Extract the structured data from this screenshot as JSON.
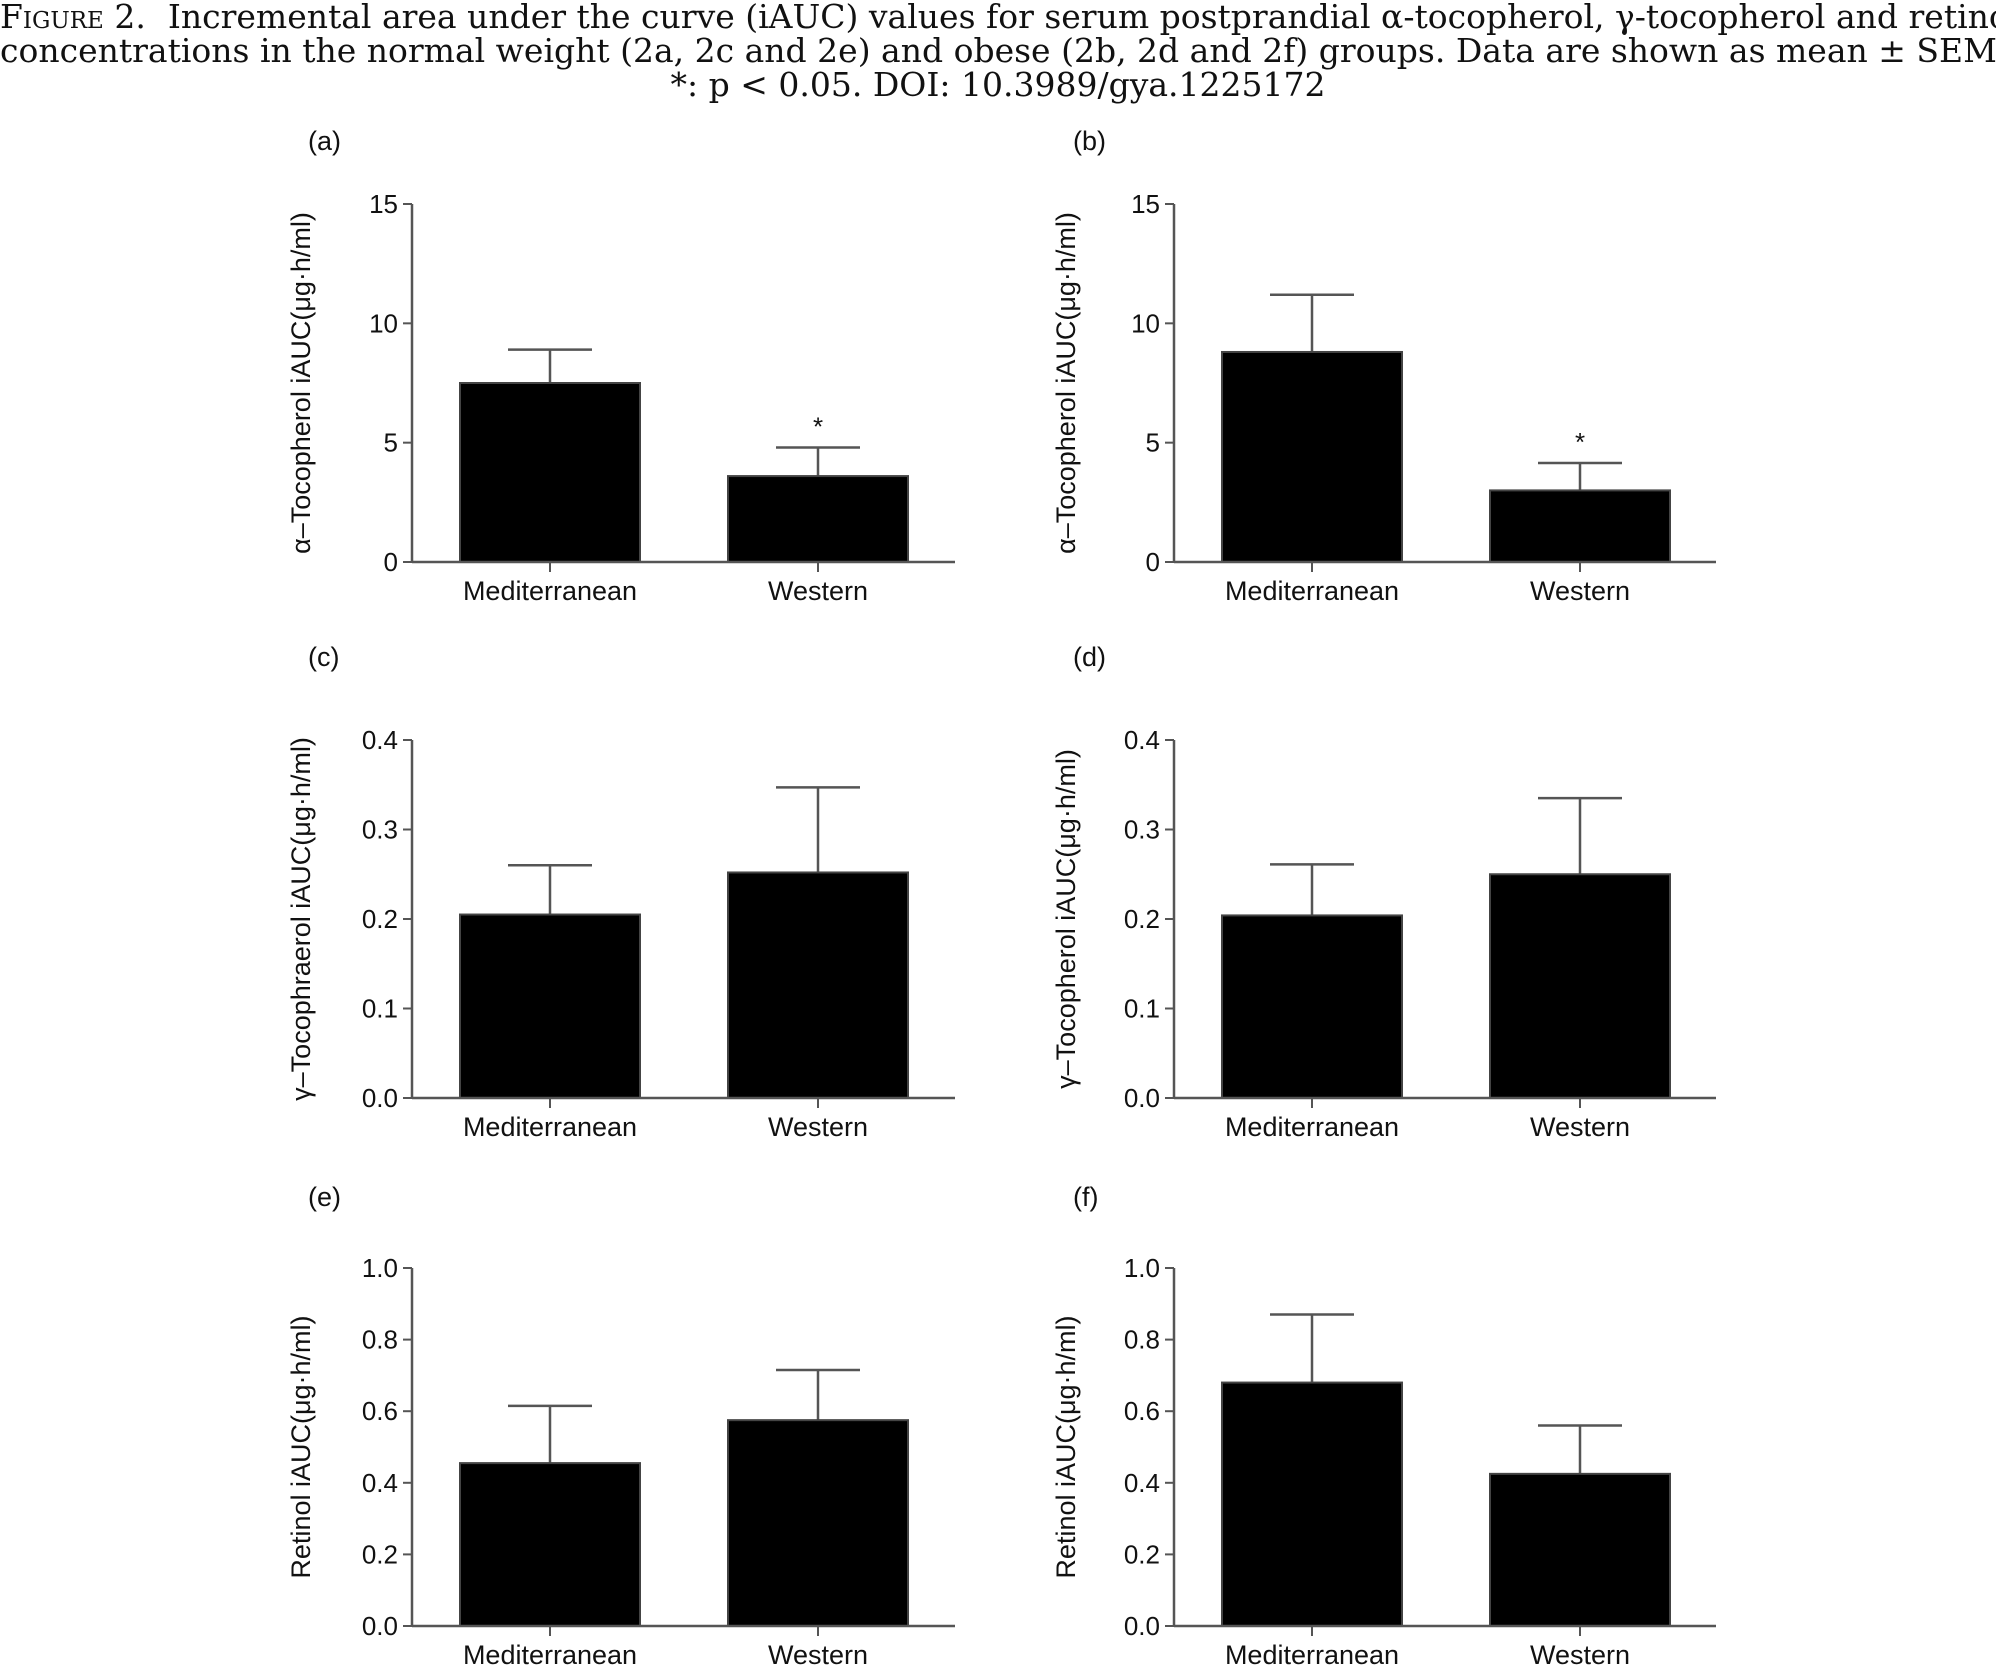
{
  "caption": {
    "figure_label": "Figure 2.",
    "line1": "Incremental area under the curve (iAUC) values for serum postprandial α-tocopherol, γ-tocopherol and retinol",
    "line2": "concentrations in the normal weight (2a, 2c and 2e) and obese (2b, 2d and 2f) groups. Data are shown as mean ± SEM.",
    "line3": "*: p < 0.05. DOI: 10.3989/gya.1225172"
  },
  "colors": {
    "bar": "#000000",
    "axis": "#555555",
    "error_bar": "#555555"
  },
  "chart_data": [
    {
      "type": "bar",
      "panel": "(a)",
      "title": "",
      "xlabel": "",
      "ylabel": "α–Tocopherol iAUC(μg·h/ml)",
      "categories": [
        "Mediterranean",
        "Western"
      ],
      "values": [
        7.5,
        3.6
      ],
      "errors": [
        1.4,
        1.2
      ],
      "significance": [
        "",
        "*"
      ],
      "ylim": [
        0,
        15
      ],
      "yticks": [
        "0",
        "5",
        "10",
        "15"
      ],
      "ytick_values": [
        0,
        5,
        10,
        15
      ]
    },
    {
      "type": "bar",
      "panel": "(b)",
      "title": "",
      "xlabel": "",
      "ylabel": "α–Tocopherol iAUC(μg·h/ml)",
      "categories": [
        "Mediterranean",
        "Western"
      ],
      "values": [
        8.8,
        3.0
      ],
      "errors": [
        2.4,
        1.15
      ],
      "significance": [
        "",
        "*"
      ],
      "ylim": [
        0,
        15
      ],
      "yticks": [
        "0",
        "5",
        "10",
        "15"
      ],
      "ytick_values": [
        0,
        5,
        10,
        15
      ]
    },
    {
      "type": "bar",
      "panel": "(c)",
      "title": "",
      "xlabel": "",
      "ylabel": "γ–Tocophraerol iAUC(μg·h/ml)",
      "categories": [
        "Mediterranean",
        "Western"
      ],
      "values": [
        0.205,
        0.252
      ],
      "errors": [
        0.055,
        0.095
      ],
      "significance": [
        "",
        ""
      ],
      "ylim": [
        0,
        0.4
      ],
      "yticks": [
        "0.0",
        "0.1",
        "0.2",
        "0.3",
        "0.4"
      ],
      "ytick_values": [
        0,
        0.1,
        0.2,
        0.3,
        0.4
      ]
    },
    {
      "type": "bar",
      "panel": "(d)",
      "title": "",
      "xlabel": "",
      "ylabel": "γ–Tocopherol iAUC(μg·h/ml)",
      "categories": [
        "Mediterranean",
        "Western"
      ],
      "values": [
        0.204,
        0.25
      ],
      "errors": [
        0.057,
        0.085
      ],
      "significance": [
        "",
        ""
      ],
      "ylim": [
        0,
        0.4
      ],
      "yticks": [
        "0.0",
        "0.1",
        "0.2",
        "0.3",
        "0.4"
      ],
      "ytick_values": [
        0,
        0.1,
        0.2,
        0.3,
        0.4
      ]
    },
    {
      "type": "bar",
      "panel": "(e)",
      "title": "",
      "xlabel": "",
      "ylabel": "Retinol iAUC(μg·h/ml)",
      "categories": [
        "Mediterranean",
        "Western"
      ],
      "values": [
        0.455,
        0.575
      ],
      "errors": [
        0.16,
        0.14
      ],
      "significance": [
        "",
        ""
      ],
      "ylim": [
        0,
        1.0
      ],
      "yticks": [
        "0.0",
        "0.2",
        "0.4",
        "0.6",
        "0.8",
        "1.0"
      ],
      "ytick_values": [
        0,
        0.2,
        0.4,
        0.6,
        0.8,
        1.0
      ]
    },
    {
      "type": "bar",
      "panel": "(f)",
      "title": "",
      "xlabel": "",
      "ylabel": "Retinol  iAUC(μg·h/ml)",
      "categories": [
        "Mediterranean",
        "Western"
      ],
      "values": [
        0.68,
        0.425
      ],
      "errors": [
        0.19,
        0.135
      ],
      "significance": [
        "",
        ""
      ],
      "ylim": [
        0,
        1.0
      ],
      "yticks": [
        "0.0",
        "0.2",
        "0.4",
        "0.6",
        "0.8",
        "1.0"
      ],
      "ytick_values": [
        0,
        0.2,
        0.4,
        0.6,
        0.8,
        1.0
      ]
    }
  ]
}
